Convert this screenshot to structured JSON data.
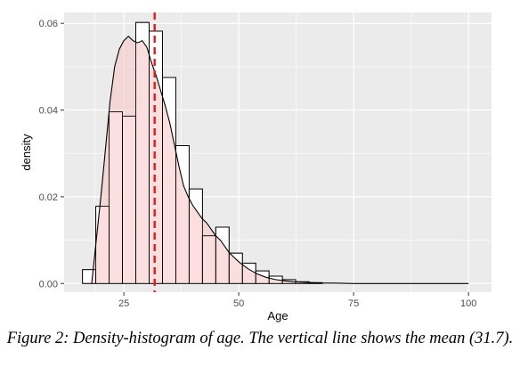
{
  "figure": {
    "caption": "Figure 2: Density-histogram of age. The vertical line shows the mean (31.7)."
  },
  "chart_data": {
    "type": "histogram",
    "xlabel": "Age",
    "ylabel": "density",
    "xlim": [
      12,
      105
    ],
    "ylim": [
      -0.002,
      0.0625
    ],
    "x_ticks": [
      25,
      50,
      75,
      100
    ],
    "y_ticks": [
      0.0,
      0.02,
      0.04,
      0.06
    ],
    "y_tick_labels": [
      "0.00",
      "0.02",
      "0.04",
      "0.06"
    ],
    "grid": true,
    "bin_width": 2.9,
    "bins": [
      {
        "x0": 16.0,
        "density": 0.0032
      },
      {
        "x0": 18.9,
        "density": 0.0178
      },
      {
        "x0": 21.8,
        "density": 0.0396
      },
      {
        "x0": 24.7,
        "density": 0.0386
      },
      {
        "x0": 27.6,
        "density": 0.0602
      },
      {
        "x0": 30.5,
        "density": 0.0582
      },
      {
        "x0": 33.4,
        "density": 0.0475
      },
      {
        "x0": 36.3,
        "density": 0.0318
      },
      {
        "x0": 39.2,
        "density": 0.0218
      },
      {
        "x0": 42.1,
        "density": 0.011
      },
      {
        "x0": 45.0,
        "density": 0.013
      },
      {
        "x0": 47.9,
        "density": 0.007
      },
      {
        "x0": 50.8,
        "density": 0.0047
      },
      {
        "x0": 53.7,
        "density": 0.0029
      },
      {
        "x0": 56.6,
        "density": 0.0017
      },
      {
        "x0": 59.5,
        "density": 0.0009
      },
      {
        "x0": 62.4,
        "density": 0.0004
      },
      {
        "x0": 65.3,
        "density": 0.0002
      }
    ],
    "density_curve": {
      "x": [
        18,
        19,
        20,
        21,
        22,
        23,
        24,
        25,
        26,
        27,
        28,
        29,
        30,
        31,
        32,
        33,
        34,
        35,
        36,
        37,
        38,
        39,
        40,
        41,
        42,
        43,
        44,
        45,
        46,
        47,
        48,
        50,
        52,
        54,
        56,
        58,
        60,
        62,
        64,
        66,
        68,
        70,
        75,
        80,
        90,
        100
      ],
      "y": [
        0.0,
        0.01,
        0.02,
        0.031,
        0.042,
        0.05,
        0.054,
        0.056,
        0.057,
        0.056,
        0.0555,
        0.056,
        0.0545,
        0.051,
        0.048,
        0.0445,
        0.041,
        0.037,
        0.032,
        0.027,
        0.0225,
        0.02,
        0.018,
        0.0165,
        0.015,
        0.014,
        0.0125,
        0.011,
        0.01,
        0.0085,
        0.007,
        0.005,
        0.0034,
        0.0022,
        0.0014,
        0.0009,
        0.0006,
        0.0004,
        0.0003,
        0.0002,
        0.0001,
        0.0001,
        0.0,
        0.0,
        0.0,
        0.0
      ]
    },
    "mean_line": {
      "x": 31.7,
      "color": "#e31a1c"
    },
    "colors": {
      "panel": "#ebebeb",
      "grid": "#ffffff",
      "bar_fill": "#ffffff",
      "bar_stroke": "#000000",
      "density_fill": "#f9cccc"
    }
  }
}
